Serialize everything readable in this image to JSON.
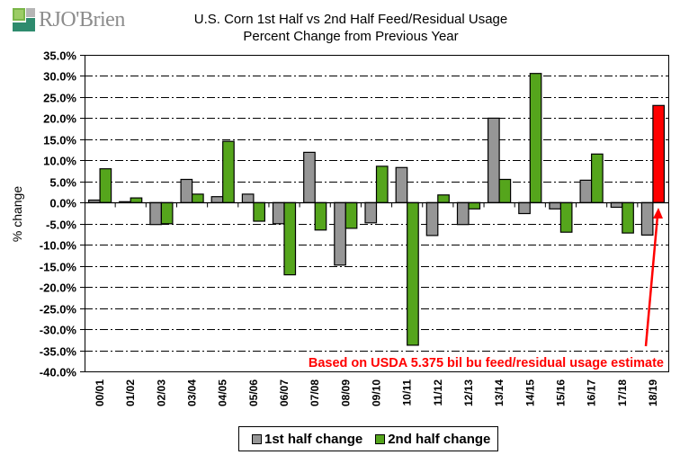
{
  "logo": {
    "text": "RJO'Brien",
    "colors": {
      "green_light": "#7ab648",
      "green_dark": "#2e8b6e",
      "gray": "#8c8c8c"
    }
  },
  "chart_data": {
    "type": "bar",
    "title": "U.S. Corn 1st Half vs 2nd Half Feed/Residual Usage",
    "subtitle": "Percent Change from Previous Year",
    "xlabel": "",
    "ylabel": "% change",
    "ylim": [
      -40,
      35
    ],
    "yticks": [
      35,
      30,
      25,
      20,
      15,
      10,
      5,
      0,
      -5,
      -10,
      -15,
      -20,
      -25,
      -30,
      -35,
      -40
    ],
    "ytick_labels": [
      "35.0%",
      "30.0%",
      "25.0%",
      "20.0%",
      "15.0%",
      "10.0%",
      "5.0%",
      "0.0%",
      "-5.0%",
      "-10.0%",
      "-15.0%",
      "-20.0%",
      "-25.0%",
      "-30.0%",
      "-35.0%",
      "-40.0%"
    ],
    "grid": "horizontal dash-dot",
    "categories": [
      "00/01",
      "01/02",
      "02/03",
      "03/04",
      "04/05",
      "05/06",
      "06/07",
      "07/08",
      "08/09",
      "09/10",
      "10/11",
      "11/12",
      "12/13",
      "13/14",
      "14/15",
      "15/16",
      "16/17",
      "17/18",
      "18/19"
    ],
    "series": [
      {
        "name": "1st half change",
        "color": "#969696",
        "values": [
          0.6,
          0.2,
          -5.2,
          5.5,
          1.4,
          2.0,
          -5.0,
          11.9,
          -14.8,
          -4.8,
          8.3,
          -7.8,
          -5.2,
          20.0,
          -2.6,
          -1.5,
          5.3,
          -1.1,
          -7.7
        ]
      },
      {
        "name": "2nd half change",
        "color": "#55a51c",
        "highlight_color": "#ff0000",
        "highlight_index": 18,
        "values": [
          8.0,
          1.1,
          -5.0,
          2.0,
          14.5,
          -4.4,
          -17.1,
          -6.5,
          -6.1,
          8.6,
          -33.8,
          1.8,
          -1.5,
          5.5,
          30.6,
          -7.0,
          11.5,
          -7.2,
          23.0
        ]
      }
    ],
    "legend": {
      "position": "bottom",
      "entries": [
        "1st half change",
        "2nd half change"
      ]
    },
    "annotation": {
      "text": "Based on USDA 5.375 bil bu feed/residual usage estimate",
      "color": "#ff0000",
      "points_to": "18/19"
    }
  }
}
